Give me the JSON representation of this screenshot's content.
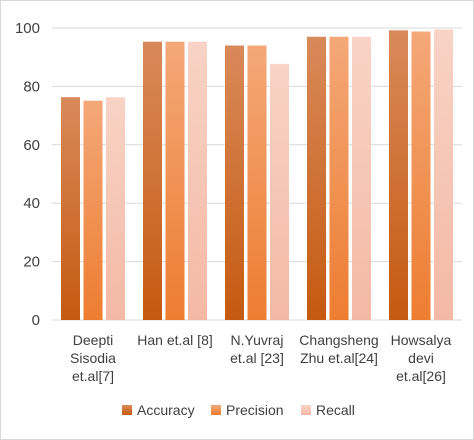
{
  "chart_data": {
    "type": "bar",
    "title": "",
    "xlabel": "",
    "ylabel": "",
    "ylim": [
      0,
      100
    ],
    "yticks": [
      0,
      20,
      40,
      60,
      80,
      100
    ],
    "grid": true,
    "legend_position": "bottom",
    "categories": [
      [
        "Deepti",
        "Sisodia",
        "et.al[7]"
      ],
      [
        "Han et.al [8]"
      ],
      [
        "N.Yuvraj",
        "et.al [23]"
      ],
      [
        "Changsheng",
        "Zhu et.al[24]"
      ],
      [
        "Howsalya",
        "devi",
        "et.al[26]"
      ]
    ],
    "series": [
      {
        "name": "Accuracy",
        "color": "#c55a11",
        "light": "#d98a5a",
        "values": [
          76.3,
          95.3,
          94.0,
          97.0,
          99.2
        ]
      },
      {
        "name": "Precision",
        "color": "#ed7d31",
        "light": "#f4a878",
        "values": [
          75.1,
          95.3,
          94.0,
          97.0,
          98.8
        ]
      },
      {
        "name": "Recall",
        "color": "#f4b9a4",
        "light": "#f8d3c6",
        "values": [
          76.3,
          95.3,
          87.7,
          97.0,
          99.5
        ]
      }
    ]
  }
}
